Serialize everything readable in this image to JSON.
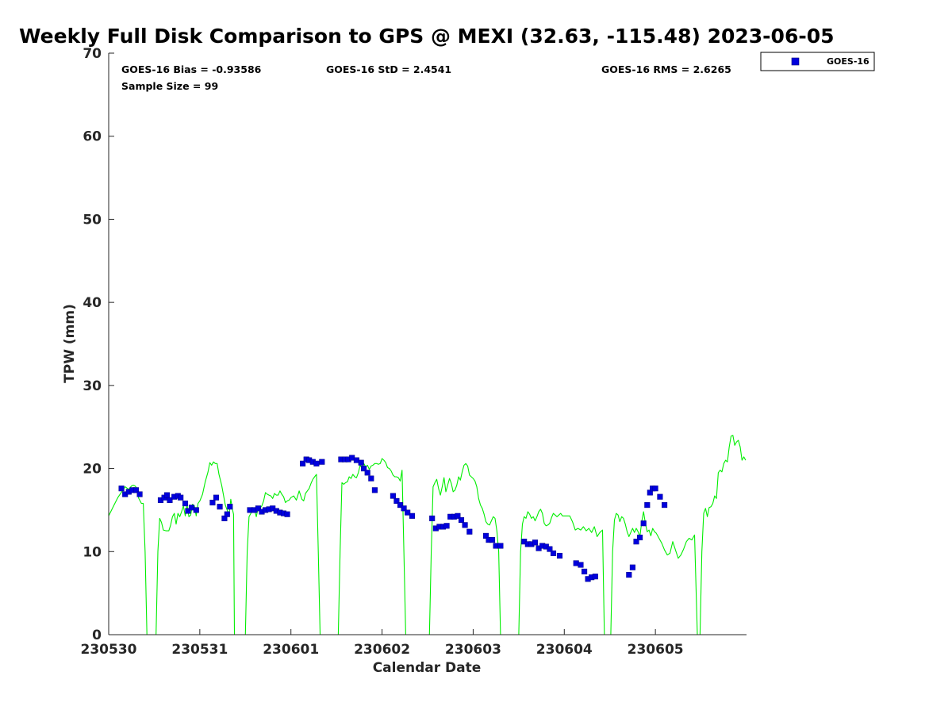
{
  "chart_data": {
    "type": "scatter",
    "title": "Weekly Full Disk Comparison to GPS @ MEXI (32.63, -115.48) 2023-06-05",
    "xlabel": "Calendar Date",
    "ylabel": "TPW (mm)",
    "xlim": [
      "230530",
      "230606"
    ],
    "ylim": [
      0,
      70
    ],
    "x_ticks": [
      "230530",
      "230531",
      "230601",
      "230602",
      "230603",
      "230604",
      "230605"
    ],
    "y_ticks": [
      0,
      10,
      20,
      30,
      40,
      50,
      60,
      70
    ],
    "grid": false,
    "legend_position": "top-right",
    "stats": {
      "bias": "GOES-16 Bias = -0.93586",
      "std": "GOES-16 StD = 2.4541",
      "rms": "GOES-16 RMS = 2.6265",
      "sample": "Sample Size = 99"
    },
    "series": [
      {
        "name": "GOES-16",
        "kind": "scatter",
        "marker": "square",
        "color": "#0000dd",
        "x": [
          0.14,
          0.18,
          0.22,
          0.26,
          0.3,
          0.34,
          0.57,
          0.61,
          0.64,
          0.67,
          0.72,
          0.76,
          0.79,
          0.84,
          0.87,
          0.91,
          0.96,
          1.14,
          1.18,
          1.22,
          1.27,
          1.3,
          1.33,
          1.55,
          1.6,
          1.64,
          1.68,
          1.72,
          1.76,
          1.8,
          1.84,
          1.88,
          1.92,
          1.96,
          2.13,
          2.17,
          2.2,
          2.24,
          2.28,
          2.34,
          2.55,
          2.59,
          2.63,
          2.67,
          2.72,
          2.77,
          2.8,
          2.84,
          2.88,
          2.92,
          3.12,
          3.16,
          3.2,
          3.24,
          3.28,
          3.33,
          3.55,
          3.59,
          3.63,
          3.67,
          3.71,
          3.75,
          3.79,
          3.83,
          3.87,
          3.91,
          3.96,
          4.14,
          4.17,
          4.21,
          4.25,
          4.3,
          4.56,
          4.6,
          4.64,
          4.68,
          4.72,
          4.76,
          4.8,
          4.84,
          4.88,
          4.95,
          5.13,
          5.18,
          5.22,
          5.26,
          5.3,
          5.34,
          5.71,
          5.75,
          5.79,
          5.83,
          5.87,
          5.91,
          5.94,
          5.97,
          6.0,
          6.05,
          6.1
        ],
        "y": [
          17.6,
          16.9,
          17.2,
          17.4,
          17.4,
          16.9,
          16.2,
          16.5,
          16.8,
          16.2,
          16.6,
          16.7,
          16.5,
          15.8,
          14.9,
          15.3,
          15.0,
          15.9,
          16.5,
          15.4,
          14.0,
          14.5,
          15.4,
          15.0,
          15.0,
          15.2,
          14.8,
          15.0,
          15.1,
          15.2,
          14.9,
          14.7,
          14.6,
          14.5,
          20.6,
          21.1,
          21.0,
          20.8,
          20.6,
          20.8,
          21.1,
          21.1,
          21.1,
          21.3,
          21.0,
          20.7,
          20.0,
          19.5,
          18.8,
          17.4,
          16.7,
          16.1,
          15.6,
          15.2,
          14.7,
          14.3,
          14.0,
          12.8,
          13.0,
          13.0,
          13.1,
          14.2,
          14.2,
          14.3,
          13.8,
          13.2,
          12.4,
          11.9,
          11.4,
          11.4,
          10.7,
          10.7,
          11.2,
          10.9,
          10.9,
          11.1,
          10.4,
          10.7,
          10.6,
          10.3,
          9.8,
          9.5,
          8.6,
          8.4,
          7.6,
          6.7,
          6.9,
          7.0,
          7.2,
          8.1,
          11.2,
          11.7,
          13.4,
          15.6,
          17.1,
          17.6,
          17.6,
          16.6,
          15.6
        ]
      },
      {
        "name": "GPS",
        "kind": "line",
        "color": "#00ee00",
        "segments": [
          {
            "x": [
              0.0,
              0.05,
              0.1,
              0.15,
              0.18,
              0.22,
              0.25,
              0.27,
              0.29,
              0.31,
              0.33,
              0.36,
              0.38,
              0.4,
              0.42
            ],
            "y": [
              14.3,
              15.4,
              16.5,
              17.3,
              17.8,
              17.5,
              17.9,
              18.0,
              17.9,
              17.6,
              16.4,
              15.8,
              15.8,
              10.0,
              0.0
            ]
          },
          {
            "x": [
              0.52,
              0.54,
              0.56,
              0.58,
              0.6,
              0.63,
              0.66,
              0.68,
              0.7,
              0.72,
              0.74,
              0.76,
              0.78,
              0.8,
              0.82,
              0.84,
              0.86,
              0.88,
              0.9,
              0.92,
              0.94,
              0.96,
              0.98,
              1.0,
              1.03,
              1.06,
              1.09,
              1.11,
              1.13,
              1.15,
              1.17,
              1.19,
              1.21,
              1.24,
              1.26,
              1.28,
              1.3,
              1.32,
              1.34,
              1.36,
              1.37,
              1.38
            ],
            "y": [
              0.0,
              10.0,
              14.0,
              13.5,
              12.6,
              12.5,
              12.5,
              13.2,
              14.2,
              14.6,
              13.3,
              14.6,
              14.2,
              14.8,
              15.5,
              14.3,
              15.6,
              14.2,
              14.4,
              15.7,
              15.5,
              14.3,
              15.8,
              16.1,
              16.9,
              18.4,
              19.6,
              20.7,
              20.4,
              20.8,
              20.6,
              20.6,
              19.3,
              18.0,
              16.8,
              15.6,
              15.0,
              14.3,
              16.3,
              15.0,
              14.5,
              0.0
            ]
          },
          {
            "x": [
              1.5,
              1.52,
              1.54,
              1.56,
              1.58,
              1.6,
              1.62,
              1.64,
              1.66,
              1.68,
              1.7,
              1.72,
              1.74,
              1.76,
              1.78,
              1.8,
              1.82,
              1.84,
              1.86,
              1.88,
              1.9,
              1.92,
              1.94,
              1.96,
              1.98,
              2.0,
              2.03,
              2.06,
              2.09,
              2.12,
              2.14,
              2.16,
              2.18,
              2.2,
              2.22,
              2.24,
              2.26,
              2.28,
              2.3,
              2.32,
              2.34,
              2.36,
              2.38,
              2.4,
              2.42
            ],
            "y": [
              0.0,
              10.0,
              14.2,
              14.6,
              15.2,
              15.0,
              14.2,
              15.3,
              15.2,
              15.5,
              16.1,
              17.1,
              16.9,
              16.8,
              16.7,
              16.4,
              17.0,
              16.8,
              16.8,
              17.3,
              16.9,
              16.6,
              15.9,
              16.1,
              16.2,
              16.5,
              16.7,
              16.2,
              17.3,
              16.3,
              16.1,
              17.0,
              17.3,
              17.6,
              18.2,
              18.7,
              19.0,
              19.3,
              10.0,
              0.0,
              0.0,
              0.0,
              0.0,
              0.0,
              0.0
            ]
          },
          {
            "x": [
              2.52,
              2.54,
              2.56,
              2.58,
              2.6,
              2.62,
              2.64,
              2.66,
              2.68,
              2.7,
              2.72,
              2.74,
              2.76,
              2.78,
              2.8,
              2.82,
              2.84,
              2.86,
              2.88,
              2.9,
              2.92,
              2.94,
              2.96,
              2.98,
              3.0,
              3.02,
              3.04,
              3.06,
              3.08,
              3.1,
              3.12,
              3.14,
              3.16,
              3.18,
              3.2,
              3.22,
              3.24,
              3.26,
              3.28,
              3.3,
              3.32,
              3.34,
              3.36,
              3.38,
              3.4,
              3.42,
              3.44
            ],
            "y": [
              0.0,
              10.0,
              18.3,
              18.1,
              18.3,
              18.4,
              19.0,
              18.8,
              19.3,
              19.0,
              18.9,
              19.5,
              20.4,
              20.0,
              20.6,
              20.2,
              20.4,
              19.9,
              20.3,
              20.4,
              20.6,
              20.6,
              20.5,
              20.6,
              21.2,
              21.0,
              20.7,
              20.1,
              20.0,
              19.7,
              19.2,
              19.0,
              19.0,
              18.9,
              18.5,
              19.8,
              10.0,
              0.0,
              0.0,
              0.0,
              0.0,
              0.0,
              0.0,
              0.0,
              0.0,
              0.0,
              0.0
            ]
          },
          {
            "x": [
              3.52,
              3.54,
              3.56,
              3.58,
              3.6,
              3.62,
              3.64,
              3.66,
              3.68,
              3.7,
              3.72,
              3.74,
              3.76,
              3.78,
              3.8,
              3.82,
              3.84,
              3.86,
              3.88,
              3.9,
              3.92,
              3.94,
              3.96,
              3.98,
              4.0,
              4.02,
              4.04,
              4.06,
              4.08,
              4.1,
              4.12,
              4.14,
              4.16,
              4.18,
              4.2,
              4.22,
              4.24,
              4.26,
              4.28,
              4.3,
              4.32,
              4.34,
              4.36,
              4.38,
              4.4,
              4.42,
              4.44
            ],
            "y": [
              0.0,
              10.0,
              17.8,
              18.3,
              18.7,
              17.6,
              16.8,
              17.8,
              18.9,
              17.2,
              18.0,
              18.8,
              18.2,
              17.2,
              17.4,
              18.0,
              19.0,
              18.6,
              19.6,
              20.4,
              20.6,
              20.3,
              19.2,
              19.0,
              18.8,
              18.5,
              17.8,
              16.4,
              15.6,
              15.2,
              14.5,
              13.6,
              13.3,
              13.2,
              13.7,
              14.2,
              14.0,
              12.5,
              10.0,
              0.0,
              0.0,
              0.0,
              0.0,
              0.0,
              0.0,
              0.0,
              0.0
            ]
          },
          {
            "x": [
              4.5,
              4.52,
              4.54,
              4.56,
              4.58,
              4.6,
              4.62,
              4.64,
              4.66,
              4.68,
              4.7,
              4.72,
              4.74,
              4.76,
              4.78,
              4.8,
              4.82,
              4.84,
              4.86,
              4.88,
              4.9,
              4.92,
              4.94,
              4.96,
              4.98,
              5.0,
              5.03,
              5.06,
              5.09,
              5.12,
              5.15,
              5.18,
              5.21,
              5.24,
              5.27,
              5.3,
              5.33,
              5.36,
              5.39,
              5.42,
              5.44
            ],
            "y": [
              0.0,
              10.0,
              13.3,
              14.2,
              14.0,
              14.8,
              14.5,
              14.0,
              14.2,
              13.7,
              14.2,
              14.8,
              15.1,
              14.6,
              13.4,
              13.1,
              13.2,
              13.4,
              14.1,
              14.6,
              14.4,
              14.2,
              14.4,
              14.6,
              14.3,
              14.3,
              14.3,
              14.3,
              13.6,
              12.6,
              12.8,
              12.6,
              13.0,
              12.5,
              12.8,
              12.3,
              13.0,
              11.8,
              12.3,
              12.6,
              0.0
            ]
          },
          {
            "x": [
              5.51,
              5.53,
              5.55,
              5.57,
              5.59,
              5.61,
              5.63,
              5.65,
              5.67,
              5.69,
              5.71,
              5.73,
              5.75,
              5.77,
              5.79,
              5.81,
              5.83,
              5.85,
              5.87,
              5.89,
              5.91,
              5.93,
              5.95,
              5.97,
              5.99,
              6.01,
              6.04,
              6.07,
              6.1,
              6.13,
              6.16,
              6.19,
              6.22,
              6.25,
              6.28,
              6.31,
              6.34,
              6.37,
              6.4,
              6.43,
              6.46
            ],
            "y": [
              0.0,
              10.0,
              13.8,
              14.6,
              14.4,
              13.6,
              14.2,
              14.0,
              13.3,
              12.4,
              11.8,
              12.3,
              12.8,
              12.3,
              12.8,
              12.4,
              11.8,
              13.6,
              14.8,
              13.4,
              12.4,
              12.6,
              11.9,
              12.8,
              12.4,
              12.2,
              11.6,
              11.0,
              10.2,
              9.6,
              9.8,
              11.2,
              10.2,
              9.2,
              9.6,
              10.3,
              11.2,
              11.6,
              11.4,
              12.0,
              0.0
            ]
          },
          {
            "x": [
              6.49,
              6.51,
              6.53,
              6.55,
              6.57,
              6.59,
              6.61,
              6.63,
              6.65,
              6.67,
              6.69,
              6.71,
              6.73,
              6.75,
              6.77,
              6.79,
              6.81,
              6.83,
              6.85,
              6.87,
              6.89,
              6.91,
              6.93,
              6.95,
              6.97,
              6.99
            ],
            "y": [
              0.0,
              10.0,
              14.6,
              15.2,
              14.2,
              15.3,
              15.4,
              15.8,
              16.7,
              16.4,
              19.5,
              19.8,
              19.6,
              20.6,
              21.0,
              20.8,
              22.6,
              23.9,
              24.0,
              22.8,
              23.2,
              23.4,
              22.6,
              21.0,
              21.4,
              21.0
            ]
          }
        ]
      }
    ]
  }
}
